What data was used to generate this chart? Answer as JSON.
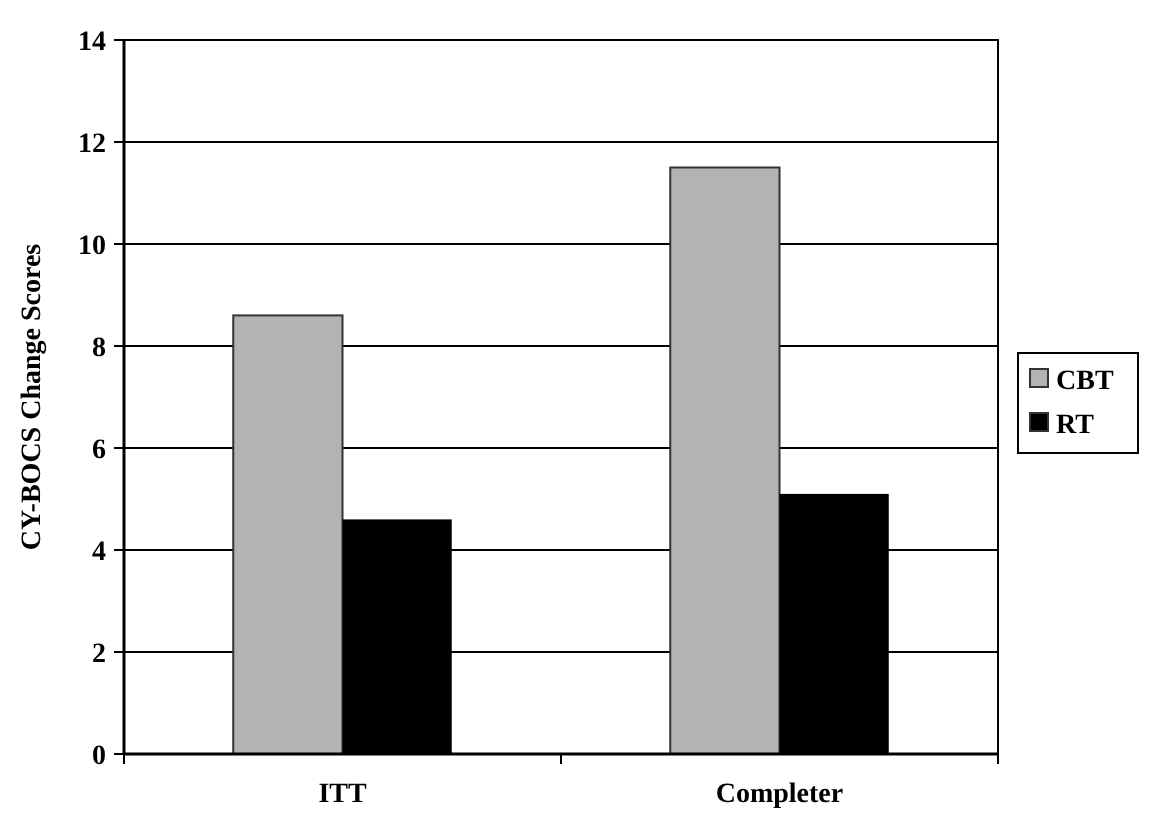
{
  "chart_data": {
    "type": "bar",
    "ylabel": "CY-BOCS Change Scores",
    "categories": [
      "ITT",
      "Completer"
    ],
    "series": [
      {
        "name": "CBT",
        "color": "#b3b3b3",
        "values": [
          8.6,
          11.5
        ]
      },
      {
        "name": "RT",
        "color": "#000000",
        "values": [
          4.6,
          5.1
        ]
      }
    ],
    "ylim": [
      0,
      14
    ],
    "yticks": [
      0,
      2,
      4,
      6,
      8,
      10,
      12,
      14
    ],
    "grid": "y",
    "legend": "right"
  }
}
